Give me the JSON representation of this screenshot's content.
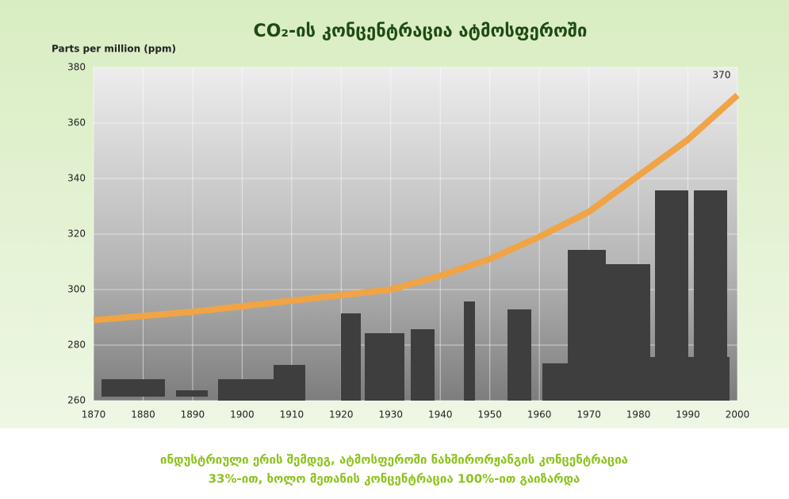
{
  "chart_data": {
    "type": "line",
    "title": "CO₂-ის კონცენტრაცია ატმოსფეროში",
    "y_label": "Parts per million (ppm)",
    "caption": [
      "ინდუსტრიული ერის შემდეგ, ატმოსფეროში ნახშირორჟანგის კონცენტრაცია",
      "33%-ით, ხოლო მეთანის კონცენტრაცია 100%-ით გაიზარდა"
    ],
    "x": [
      1870,
      1880,
      1890,
      1900,
      1910,
      1920,
      1930,
      1940,
      1950,
      1960,
      1970,
      1980,
      1990,
      2000
    ],
    "values": [
      289,
      290.5,
      292,
      294,
      296,
      298,
      300,
      305,
      311,
      319,
      328,
      341,
      354,
      370
    ],
    "color": "#f0a445",
    "xlim": [
      1870,
      2000
    ],
    "xticks": [
      1870,
      1880,
      1890,
      1900,
      1910,
      1920,
      1930,
      1940,
      1950,
      1960,
      1970,
      1980,
      1990,
      2000
    ],
    "ylim": [
      260,
      380
    ],
    "yticks": [
      260,
      280,
      300,
      320,
      340,
      360,
      380
    ],
    "grid": true
  }
}
